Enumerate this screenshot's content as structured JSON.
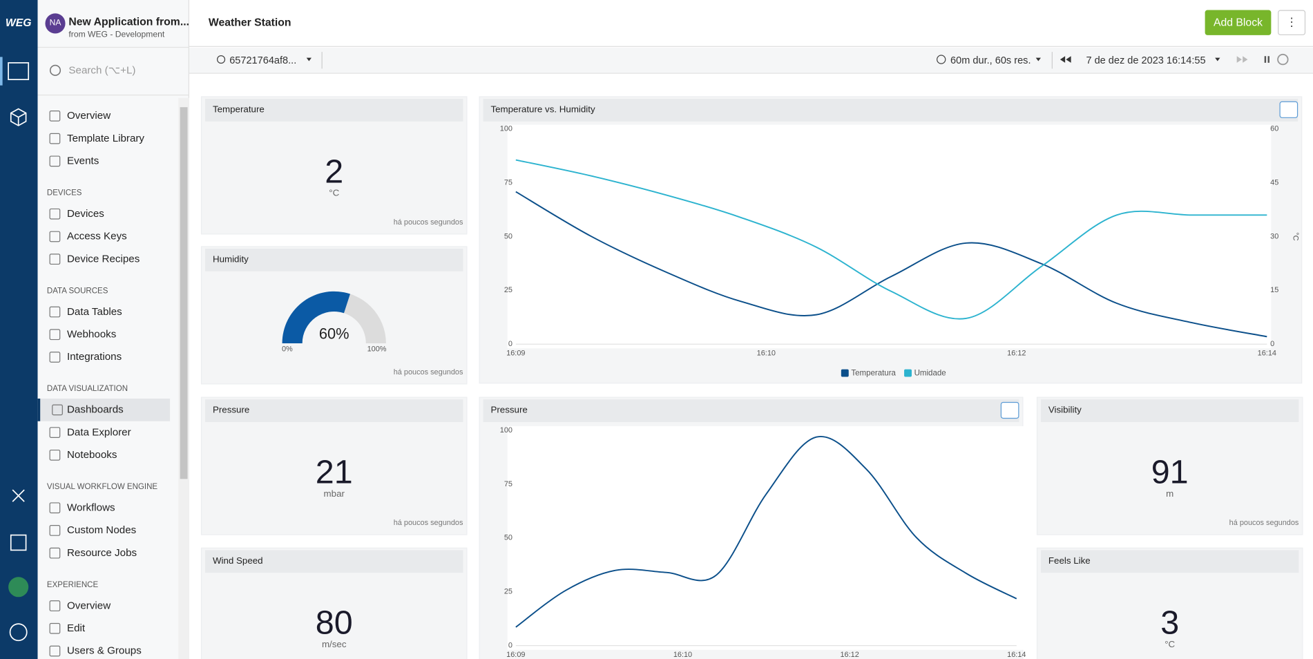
{
  "logo": "WEG",
  "app": {
    "avatar": "NA",
    "title": "New Application from...",
    "subtitle": "from WEG - Development"
  },
  "search": {
    "placeholder": "Search (⌥+L)"
  },
  "nav": [
    {
      "items": [
        "Overview",
        "Template Library",
        "Events"
      ]
    },
    {
      "heading": "DEVICES",
      "items": [
        "Devices",
        "Access Keys",
        "Device Recipes"
      ]
    },
    {
      "heading": "DATA SOURCES",
      "items": [
        "Data Tables",
        "Webhooks",
        "Integrations"
      ]
    },
    {
      "heading": "DATA VISUALIZATION",
      "items": [
        "Dashboards",
        "Data Explorer",
        "Notebooks"
      ],
      "selected": "Dashboards"
    },
    {
      "heading": "VISUAL WORKFLOW ENGINE",
      "items": [
        "Workflows",
        "Custom Nodes",
        "Resource Jobs"
      ]
    },
    {
      "heading": "EXPERIENCE",
      "items": [
        "Overview",
        "Edit",
        "Users & Groups"
      ]
    }
  ],
  "header": {
    "title": "Weather Station",
    "button": "Add Block"
  },
  "toolbar": {
    "device": "65721764af8...",
    "duration": "60m dur., 60s res.",
    "date": "7 de dez de 2023 16:14:55"
  },
  "blocks": [
    {
      "title": "Temperature",
      "value": 2,
      "unit": "°C",
      "footer": "há poucos segundos"
    },
    {
      "title": "Humidity",
      "value": 60,
      "value_label": "60%",
      "range": [
        {
          "value": 0,
          "label": "0%"
        },
        {
          "value": 100,
          "label": "100%"
        }
      ],
      "footer": "há poucos segundos"
    },
    {
      "title": "Pressure",
      "value": 21,
      "unit": "mbar",
      "footer": "há poucos segundos"
    },
    {
      "title": "Wind Speed",
      "value": 80,
      "unit": "m/sec"
    },
    {
      "title": "Visibility",
      "value": 91,
      "unit": "m",
      "footer": "há poucos segundos"
    },
    {
      "title": "Feels Like",
      "value": 3,
      "unit": "°C"
    }
  ],
  "chart_data": [
    {
      "type": "line",
      "title": "Temperature vs. Humidity",
      "x_labels": [
        "16:09",
        "16:10",
        "16:12",
        "16:14"
      ],
      "ylim": [
        0,
        100
      ],
      "yticks": [
        0,
        25,
        50,
        75,
        100
      ],
      "y2lim": [
        0,
        60
      ],
      "y2ticks": [
        0,
        15,
        30,
        45,
        60
      ],
      "y2label": "°C",
      "legend": "bottom",
      "series": [
        {
          "name": "Temperatura",
          "color": "#0b4f8a",
          "axis": "y2",
          "values": [
            42.5,
            30.1,
            20.1,
            11.9,
            8.2,
            18.9,
            28.2,
            22.4,
            11.4,
            6,
            2.1
          ]
        },
        {
          "name": "Umidade",
          "color": "#2cb3cf",
          "values": [
            85.6,
            78.2,
            69.3,
            58.8,
            45.1,
            24.5,
            12,
            36.2,
            60,
            60,
            60
          ]
        }
      ]
    },
    {
      "type": "line",
      "title": "Pressure",
      "x_labels": [
        "16:09",
        "16:10",
        "16:12",
        "16:14"
      ],
      "ylim": [
        0,
        100
      ],
      "yticks": [
        0,
        25,
        50,
        75,
        100
      ],
      "color": "#0b4f8a",
      "values": [
        8.6,
        25.7,
        35,
        34,
        32.7,
        70.4,
        96.9,
        82,
        50.2,
        33.5,
        21.8
      ]
    }
  ]
}
